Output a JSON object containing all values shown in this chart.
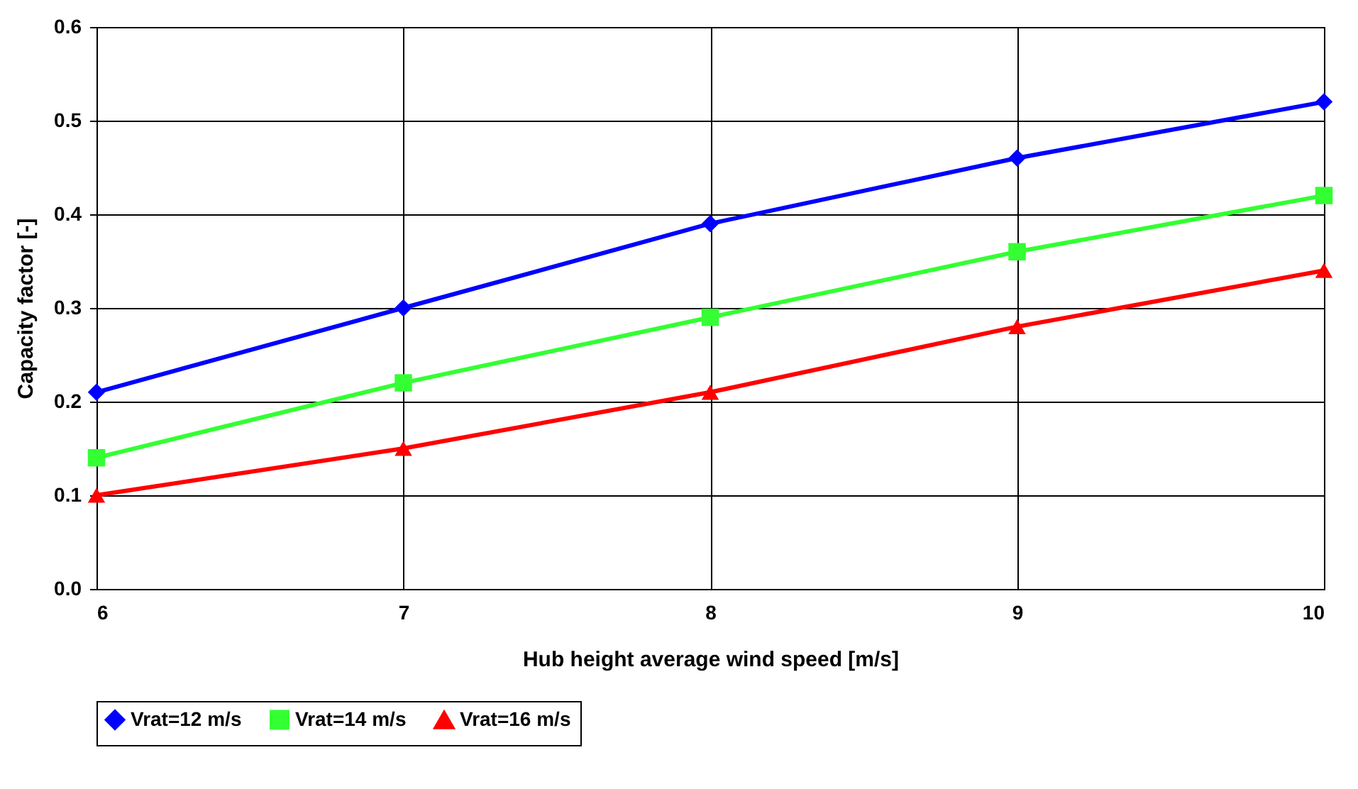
{
  "chart_data": {
    "type": "line",
    "xlabel": "Hub height average wind speed [m/s]",
    "ylabel": "Capacity factor [-]",
    "x": [
      6,
      7,
      8,
      9,
      10
    ],
    "series": [
      {
        "name": "Vrat=12 m/s",
        "color": "#0000ff",
        "marker": "diamond",
        "values": [
          0.21,
          0.3,
          0.39,
          0.46,
          0.52
        ]
      },
      {
        "name": "Vrat=14 m/s",
        "color": "#33ff33",
        "marker": "square",
        "values": [
          0.14,
          0.22,
          0.29,
          0.36,
          0.42
        ]
      },
      {
        "name": "Vrat=16 m/s",
        "color": "#ff0000",
        "marker": "triangle",
        "values": [
          0.1,
          0.15,
          0.21,
          0.28,
          0.34
        ]
      }
    ],
    "xlim": [
      6,
      10
    ],
    "xticks": [
      6,
      7,
      8,
      9,
      10
    ],
    "ylim": [
      0,
      0.6
    ],
    "yticks": [
      {
        "value": 0,
        "label": "0.0"
      },
      {
        "value": 0.1,
        "label": "0.1"
      },
      {
        "value": 0.2,
        "label": "0.2"
      },
      {
        "value": 0.3,
        "label": "0.3"
      },
      {
        "value": 0.4,
        "label": "0.4"
      },
      {
        "value": 0.5,
        "label": "0.5"
      },
      {
        "value": 0.6,
        "label": "0.6"
      }
    ],
    "grid": true,
    "legend": "bottom",
    "line_style": "solid"
  }
}
